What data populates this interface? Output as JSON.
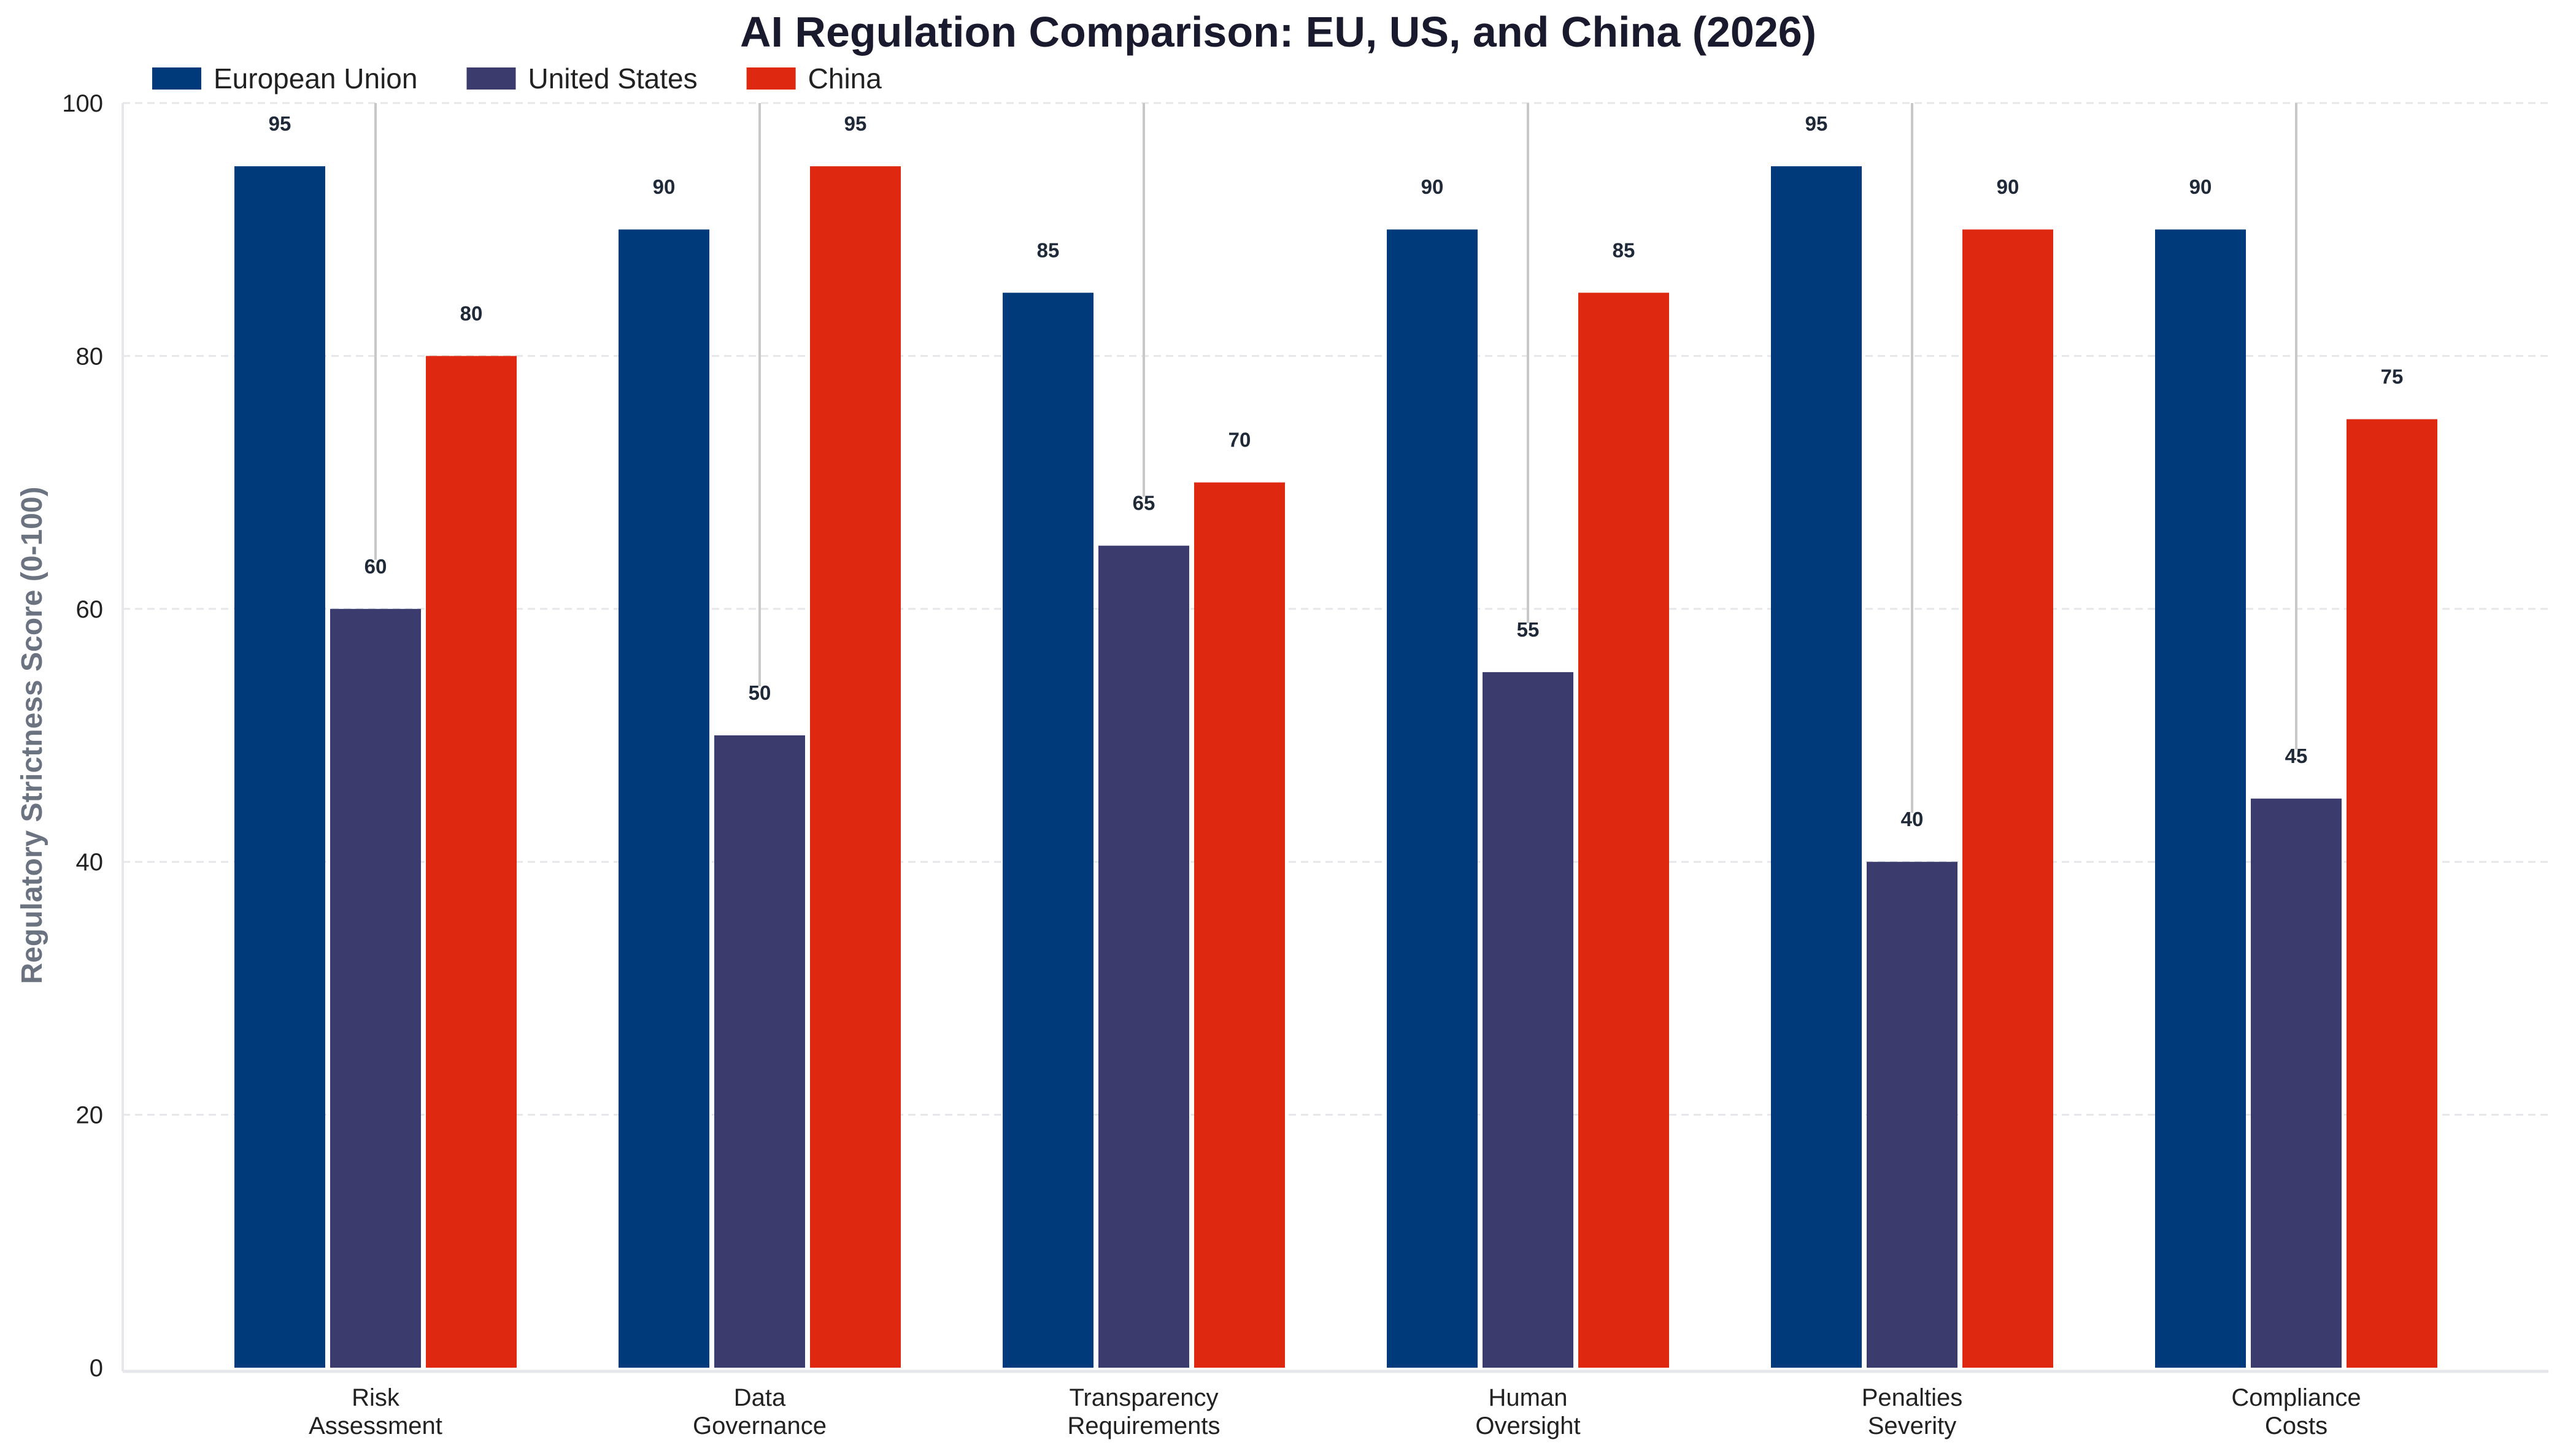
{
  "chart_data": {
    "type": "bar",
    "title": "AI Regulation Comparison: EU, US, and China (2026)",
    "xlabel": "",
    "ylabel": "Regulatory Strictness Score (0-100)",
    "ylim": [
      0,
      100
    ],
    "yticks": [
      0,
      20,
      40,
      60,
      80,
      100
    ],
    "grid": "horizontal dashed",
    "legend": "top-left",
    "categories": [
      [
        "Risk",
        "Assessment"
      ],
      [
        "Data",
        "Governance"
      ],
      [
        "Transparency",
        "Requirements"
      ],
      [
        "Human",
        "Oversight"
      ],
      [
        "Penalties",
        "Severity"
      ],
      [
        "Compliance",
        "Costs"
      ]
    ],
    "series": [
      {
        "name": "European Union",
        "color": "#003a7a",
        "values": [
          95,
          90,
          85,
          90,
          95,
          90
        ]
      },
      {
        "name": "United States",
        "color": "#3c3b6e",
        "values": [
          60,
          50,
          65,
          55,
          40,
          45
        ]
      },
      {
        "name": "China",
        "color": "#de2910",
        "values": [
          80,
          95,
          70,
          85,
          90,
          75
        ]
      }
    ]
  }
}
